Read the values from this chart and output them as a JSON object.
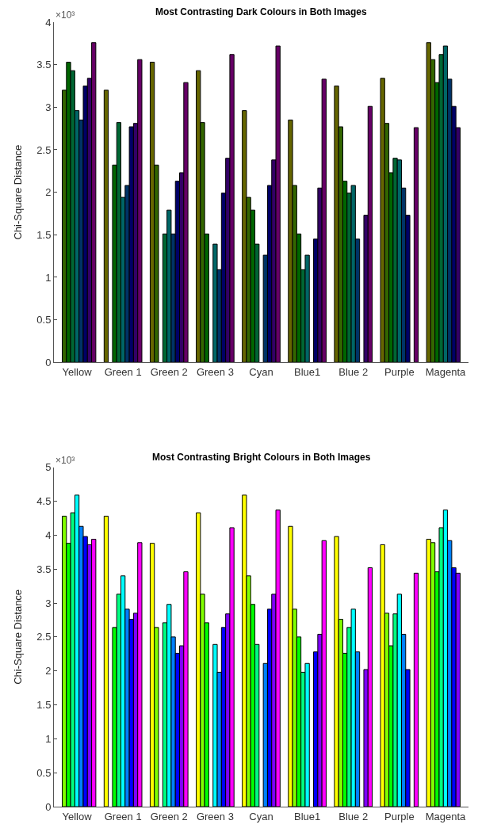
{
  "chart_data": [
    {
      "type": "bar",
      "title": "Most Contrasting Dark Colours in Both Images",
      "ylabel": "Chi-Square Distance",
      "annotations": [
        "×10³"
      ],
      "categories": [
        "Yellow",
        "Green 1",
        "Green 2",
        "Green 3",
        "Cyan",
        "Blue1",
        "Blue 2",
        "Purple",
        "Magenta"
      ],
      "ylim": [
        0,
        4
      ],
      "yticks": [
        0,
        0.5,
        1,
        1.5,
        2,
        2.5,
        3,
        3.5,
        4
      ],
      "series": [
        {
          "color": "#666600",
          "values": [
            null,
            3.2,
            3.53,
            3.43,
            2.96,
            2.85,
            3.25,
            3.34,
            3.76
          ]
        },
        {
          "color": "#336600",
          "values": [
            3.2,
            null,
            2.32,
            2.82,
            1.94,
            2.08,
            2.77,
            2.81,
            3.56
          ]
        },
        {
          "color": "#006600",
          "values": [
            3.53,
            2.32,
            null,
            1.51,
            1.79,
            1.51,
            2.13,
            2.23,
            3.29
          ]
        },
        {
          "color": "#006633",
          "values": [
            3.43,
            2.82,
            1.51,
            null,
            1.39,
            1.09,
            1.99,
            2.4,
            3.62
          ]
        },
        {
          "color": "#006666",
          "values": [
            2.96,
            1.94,
            1.79,
            1.39,
            null,
            1.26,
            2.08,
            2.38,
            3.72
          ]
        },
        {
          "color": "#003366",
          "values": [
            2.85,
            2.08,
            1.51,
            1.09,
            1.26,
            null,
            1.45,
            2.05,
            3.33
          ]
        },
        {
          "color": "#000066",
          "values": [
            3.25,
            2.77,
            2.13,
            1.99,
            2.08,
            1.45,
            null,
            1.73,
            3.01
          ]
        },
        {
          "color": "#330066",
          "values": [
            3.34,
            2.81,
            2.23,
            2.4,
            2.38,
            2.05,
            1.73,
            null,
            2.76
          ]
        },
        {
          "color": "#660066",
          "values": [
            3.76,
            3.56,
            3.29,
            3.62,
            3.72,
            3.33,
            3.01,
            2.76,
            null
          ]
        }
      ]
    },
    {
      "type": "bar",
      "title": "Most Contrasting Bright Colours in Both Images",
      "ylabel": "Chi-Square Distance",
      "annotations": [
        "×10³"
      ],
      "categories": [
        "Yellow",
        "Green 1",
        "Green 2",
        "Green 3",
        "Cyan",
        "Blue1",
        "Blue 2",
        "Purple",
        "Magenta"
      ],
      "ylim": [
        0,
        5
      ],
      "yticks": [
        0,
        0.5,
        1,
        1.5,
        2,
        2.5,
        3,
        3.5,
        4,
        4.5,
        5
      ],
      "series": [
        {
          "color": "#ffff00",
          "values": [
            null,
            4.28,
            3.88,
            4.33,
            4.59,
            4.13,
            3.98,
            3.86,
            3.94
          ]
        },
        {
          "color": "#80ff00",
          "values": [
            4.28,
            null,
            2.64,
            3.13,
            3.4,
            2.91,
            2.76,
            2.85,
            3.89
          ]
        },
        {
          "color": "#00ff00",
          "values": [
            3.88,
            2.64,
            null,
            2.71,
            2.98,
            2.5,
            2.26,
            2.37,
            3.46
          ]
        },
        {
          "color": "#00ff80",
          "values": [
            4.33,
            3.13,
            2.71,
            null,
            2.39,
            1.98,
            2.64,
            2.84,
            4.11
          ]
        },
        {
          "color": "#00ffff",
          "values": [
            4.59,
            3.4,
            2.98,
            2.39,
            null,
            2.11,
            2.91,
            3.13,
            4.37
          ]
        },
        {
          "color": "#0080ff",
          "values": [
            4.13,
            2.91,
            2.5,
            1.98,
            2.11,
            null,
            2.28,
            2.54,
            3.92
          ]
        },
        {
          "color": "#0000ff",
          "values": [
            3.98,
            2.76,
            2.26,
            2.64,
            2.91,
            2.28,
            null,
            2.02,
            3.52
          ]
        },
        {
          "color": "#8000ff",
          "values": [
            3.86,
            2.85,
            2.37,
            2.84,
            3.13,
            2.54,
            2.02,
            null,
            3.44
          ]
        },
        {
          "color": "#ff00ff",
          "values": [
            3.94,
            3.89,
            3.46,
            4.11,
            4.37,
            3.92,
            3.52,
            3.44,
            null
          ]
        }
      ]
    }
  ]
}
